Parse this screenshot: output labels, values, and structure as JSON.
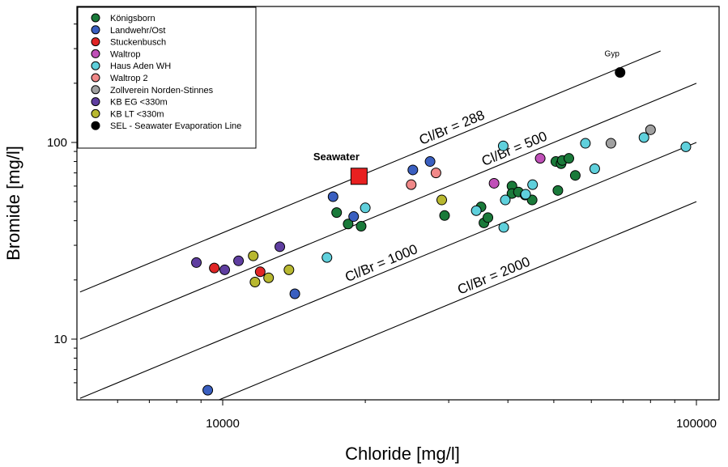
{
  "chart_data": {
    "type": "scatter",
    "xlabel": "Chloride [mg/l]",
    "ylabel": "Bromide [mg/l]",
    "xscale": "log",
    "yscale": "log",
    "xlim": [
      5000,
      120000
    ],
    "ylim": [
      5,
      500
    ],
    "xticks": [
      10000,
      100000
    ],
    "xtick_labels": [
      "10000",
      "100000"
    ],
    "yticks": [
      10,
      100
    ],
    "ytick_labels": [
      "10",
      "100"
    ],
    "grid": false,
    "legend_position": "top-left",
    "ratio_lines": [
      {
        "label": "Cl/Br = 288",
        "ratio": 288,
        "x_range": [
          5000,
          84000
        ]
      },
      {
        "label": "Cl/Br = 500",
        "ratio": 500,
        "x_range": [
          5000,
          100000
        ]
      },
      {
        "label": "Cl/Br = 1000",
        "ratio": 1000,
        "x_range": [
          5000,
          100000
        ]
      },
      {
        "label": "Cl/Br = 2000",
        "ratio": 2000,
        "x_range": [
          5000,
          100000
        ]
      }
    ],
    "annotations": [
      {
        "text": "Seawater",
        "x": 19400,
        "y": 67.3
      },
      {
        "text": "Gyp",
        "x": 69000,
        "y": 240
      }
    ],
    "series": [
      {
        "name": "Königsborn",
        "color": "#1a7a3a",
        "marker": "circle",
        "points": [
          [
            17400,
            44
          ],
          [
            18400,
            38.5
          ],
          [
            19600,
            37.5
          ],
          [
            29400,
            42.5
          ],
          [
            35100,
            47
          ],
          [
            35600,
            39
          ],
          [
            36300,
            41.5
          ],
          [
            40800,
            60
          ],
          [
            40800,
            55
          ],
          [
            42100,
            56
          ],
          [
            43500,
            54
          ],
          [
            45000,
            51
          ],
          [
            50500,
            80
          ],
          [
            51000,
            57
          ],
          [
            51800,
            78
          ],
          [
            52100,
            81
          ],
          [
            53800,
            83
          ],
          [
            55500,
            68
          ]
        ]
      },
      {
        "name": "Landwehr/Ost",
        "color": "#3a5fc0",
        "marker": "circle",
        "points": [
          [
            9300,
            5.5
          ],
          [
            14200,
            17
          ],
          [
            17100,
            53
          ],
          [
            18900,
            42
          ],
          [
            25200,
            72.5
          ],
          [
            27400,
            80
          ]
        ]
      },
      {
        "name": "Stuckenbusch",
        "color": "#e02525",
        "marker": "circle",
        "points": [
          [
            9600,
            23
          ],
          [
            12000,
            22
          ]
        ]
      },
      {
        "name": "Waltrop",
        "color": "#c050b8",
        "marker": "circle",
        "points": [
          [
            37400,
            62
          ],
          [
            46800,
            83
          ]
        ]
      },
      {
        "name": "Haus Aden WH",
        "color": "#5fd0dc",
        "marker": "circle",
        "points": [
          [
            16600,
            26
          ],
          [
            20000,
            46.5
          ],
          [
            34300,
            45
          ],
          [
            39100,
            96
          ],
          [
            39500,
            51
          ],
          [
            39200,
            37
          ],
          [
            43600,
            54.5
          ],
          [
            45100,
            61
          ],
          [
            58300,
            99
          ],
          [
            61000,
            73.5
          ],
          [
            77500,
            106
          ],
          [
            95000,
            95
          ]
        ]
      },
      {
        "name": "Waltrop 2",
        "color": "#f08888",
        "marker": "circle",
        "points": [
          [
            25000,
            61
          ],
          [
            28200,
            70
          ]
        ]
      },
      {
        "name": "Zollverein Norden-Stinnes",
        "color": "#a0a0a0",
        "marker": "circle",
        "points": [
          [
            66000,
            99
          ],
          [
            80000,
            116
          ]
        ]
      },
      {
        "name": "KB EG <330m",
        "color": "#5f3ea0",
        "marker": "circle",
        "points": [
          [
            8800,
            24.5
          ],
          [
            10100,
            22.5
          ],
          [
            10800,
            25
          ],
          [
            13200,
            29.5
          ]
        ]
      },
      {
        "name": "KB LT <330m",
        "color": "#b8b830",
        "marker": "circle",
        "points": [
          [
            11600,
            26.5
          ],
          [
            11700,
            19.5
          ],
          [
            12500,
            20.5
          ],
          [
            13800,
            22.5
          ],
          [
            29000,
            51
          ]
        ]
      },
      {
        "name": "SEL - Seawater Evaporation Line",
        "color": "#000000",
        "marker": "circle",
        "points": [
          [
            69000,
            227
          ]
        ]
      },
      {
        "name": "Seawater",
        "color": "#e82020",
        "marker": "square",
        "in_legend": false,
        "points": [
          [
            19400,
            67.3
          ]
        ]
      }
    ]
  }
}
